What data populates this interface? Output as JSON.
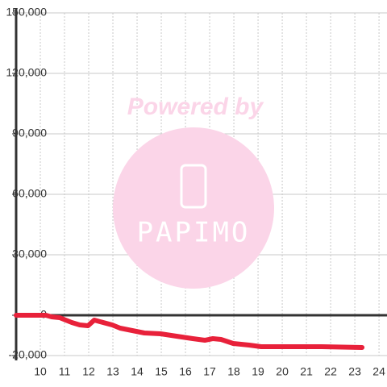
{
  "chart_data": {
    "type": "line",
    "x": [
      9,
      10.23,
      10.47,
      10.8,
      11.3,
      11.63,
      11.97,
      12.23,
      12.47,
      12.97,
      13.3,
      13.8,
      14.3,
      14.97,
      15.63,
      16.3,
      16.8,
      17.13,
      17.47,
      17.97,
      18.63,
      19.13,
      21.63,
      23.3
    ],
    "series": [
      {
        "color": "#e8213a",
        "values": [
          0,
          0,
          -800,
          -1200,
          -3600,
          -4800,
          -5200,
          -2400,
          -3200,
          -4800,
          -6400,
          -7600,
          -8800,
          -9200,
          -10400,
          -11600,
          -12400,
          -11600,
          -12000,
          -14000,
          -14800,
          -15600,
          -15600,
          -16000
        ]
      }
    ],
    "xlim": [
      9,
      24.33
    ],
    "xticks": [
      10,
      11,
      12,
      13,
      14,
      15,
      16,
      17,
      18,
      19,
      20,
      21,
      22,
      23,
      24
    ],
    "ylim": [
      -20000,
      150000
    ],
    "yticks": [
      {
        "value": -20000,
        "label": "-20,000"
      },
      0,
      {
        "value": 30000,
        "label": "30,000"
      },
      {
        "value": 60000,
        "label": "60,000"
      },
      {
        "value": 90000,
        "label": "90,000"
      },
      {
        "value": 120000,
        "label": "120,000"
      },
      {
        "value": 150000,
        "label": "150,000"
      }
    ],
    "grid": true,
    "watermark": {
      "top": "Powered by",
      "logo": "PAPIMO"
    }
  }
}
